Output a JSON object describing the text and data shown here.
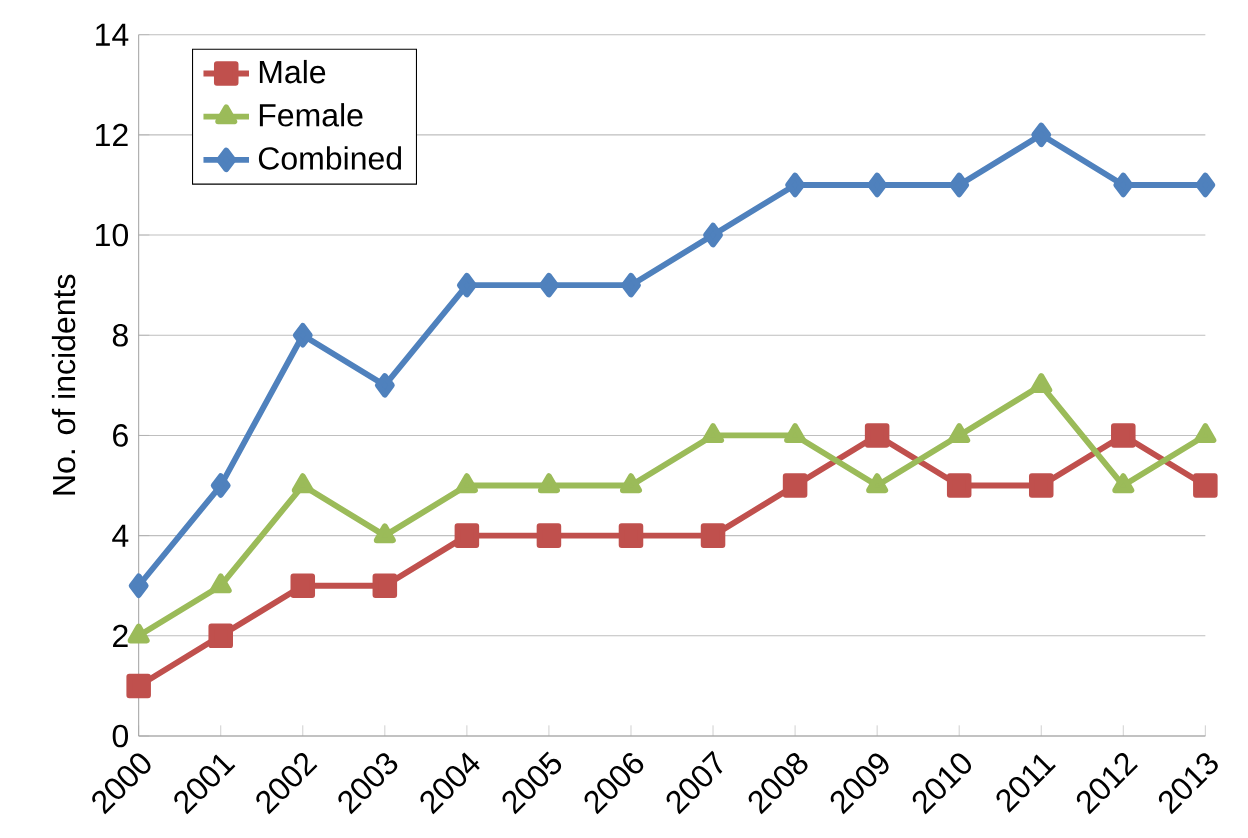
{
  "chart_data": {
    "type": "line",
    "ylabel": "No. of incidents",
    "categories": [
      "2000",
      "2001",
      "2002",
      "2003",
      "2004",
      "2005",
      "2006",
      "2007",
      "2008",
      "2009",
      "2010",
      "2011",
      "2012",
      "2013"
    ],
    "series": [
      {
        "name": "Male",
        "color": "#c0504d",
        "marker": "square",
        "values": [
          1,
          2,
          3,
          3,
          4,
          4,
          4,
          4,
          5,
          6,
          5,
          5,
          6,
          5
        ]
      },
      {
        "name": "Female",
        "color": "#9bbb59",
        "marker": "triangle",
        "values": [
          2,
          3,
          5,
          4,
          5,
          5,
          5,
          6,
          6,
          5,
          6,
          7,
          5,
          6
        ]
      },
      {
        "name": "Combined",
        "color": "#4f81bd",
        "marker": "diamond",
        "values": [
          3,
          5,
          8,
          7,
          9,
          9,
          9,
          10,
          11,
          11,
          11,
          12,
          11,
          11
        ]
      }
    ],
    "ylim": [
      0,
      14
    ],
    "yticks": [
      0,
      2,
      4,
      6,
      8,
      10,
      12,
      14
    ],
    "grid": "y",
    "legend": "top left"
  }
}
